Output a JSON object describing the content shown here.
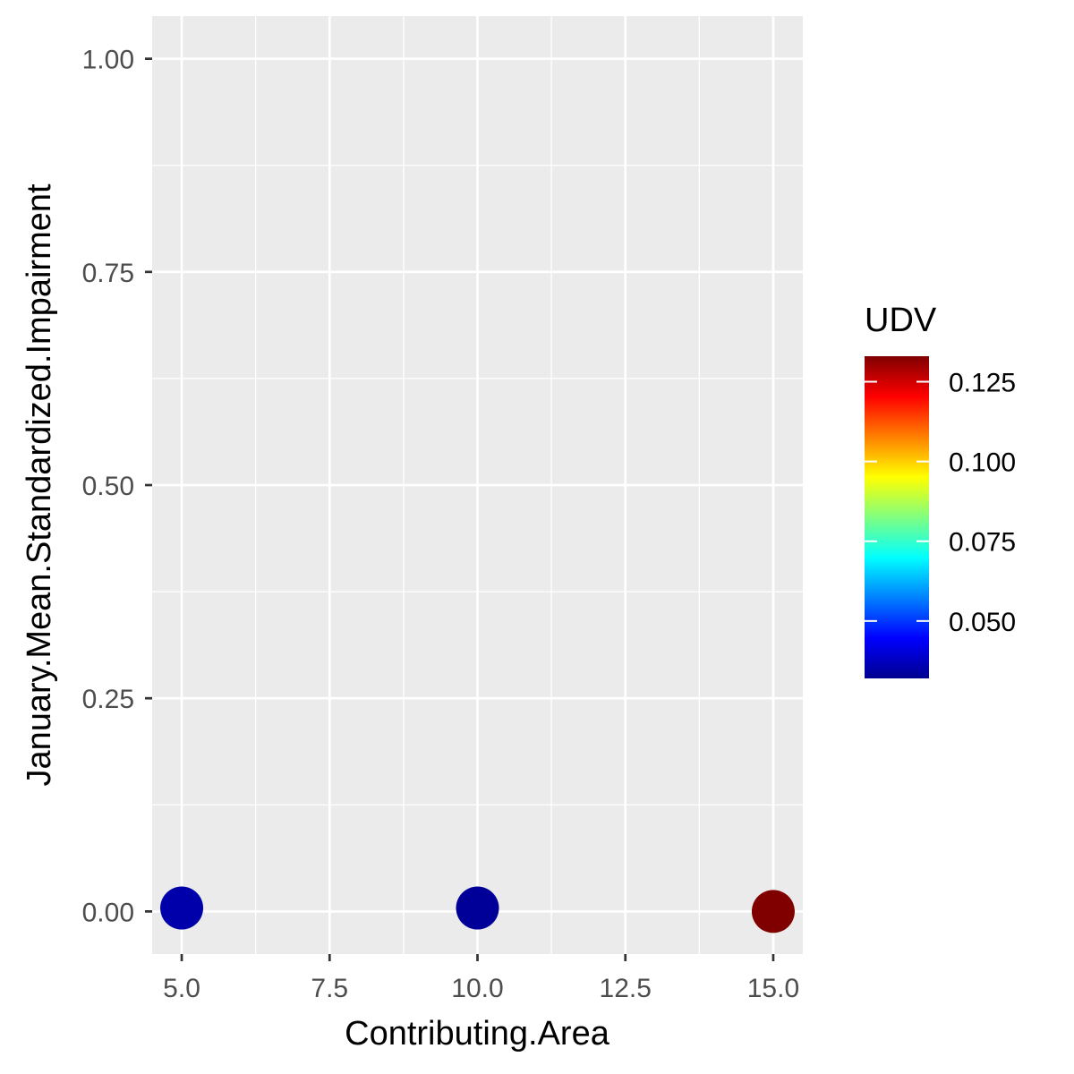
{
  "chart_data": {
    "type": "scatter",
    "title": "",
    "xlabel": "Contributing.Area",
    "ylabel": "January.Mean.Standardized.Impairment",
    "xlim": [
      4.5,
      15.5
    ],
    "ylim": [
      -0.05,
      1.05
    ],
    "x_ticks": [
      5.0,
      7.5,
      10.0,
      12.5,
      15.0
    ],
    "x_tick_labels": [
      "5.0",
      "7.5",
      "10.0",
      "12.5",
      "15.0"
    ],
    "y_ticks": [
      0.0,
      0.25,
      0.5,
      0.75,
      1.0
    ],
    "y_tick_labels": [
      "0.00",
      "0.25",
      "0.50",
      "0.75",
      "1.00"
    ],
    "grid": true,
    "panel_background": "#ebebeb",
    "points": [
      {
        "x": 5,
        "y": 0.004,
        "udv": 0.035
      },
      {
        "x": 10,
        "y": 0.004,
        "udv": 0.033
      },
      {
        "x": 15,
        "y": 0.0,
        "udv": 0.133
      }
    ],
    "color_scale": {
      "title": "UDV",
      "min": 0.032,
      "max": 0.133,
      "ticks": [
        0.05,
        0.075,
        0.1,
        0.125
      ],
      "tick_labels": [
        "0.050",
        "0.075",
        "0.100",
        "0.125"
      ],
      "palette": [
        "#00008f",
        "#0000ff",
        "#0080ff",
        "#00ffff",
        "#80ff80",
        "#ffff00",
        "#ff8000",
        "#ff0000",
        "#800000"
      ]
    },
    "legend_position": "right"
  }
}
